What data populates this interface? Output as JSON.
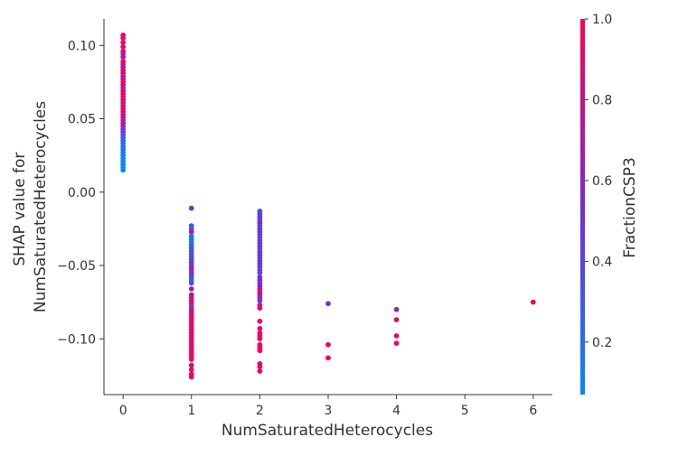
{
  "chart_data": {
    "type": "scatter",
    "title": "",
    "xlabel": "NumSaturatedHeterocycles",
    "ylabel_lines": [
      "SHAP value for",
      "NumSaturatedHeterocycles"
    ],
    "colorbar_label": "FractionCSP3",
    "xlim": [
      -0.28,
      6.28
    ],
    "ylim": [
      -0.138,
      0.118
    ],
    "x_ticks": [
      0,
      1,
      2,
      3,
      4,
      5,
      6
    ],
    "x_tick_labels": [
      "0",
      "1",
      "2",
      "3",
      "4",
      "5",
      "6"
    ],
    "y_ticks": [
      -0.1,
      -0.05,
      0.0,
      0.05,
      0.1
    ],
    "y_tick_labels": [
      "−0.10",
      "−0.05",
      "0.00",
      "0.05",
      "0.10"
    ],
    "colorbar_range": [
      0.07,
      1.0
    ],
    "colorbar_ticks": [
      0.2,
      0.4,
      0.6,
      0.8,
      1.0
    ],
    "colorbar_tick_labels": [
      "0.2",
      "0.4",
      "0.6",
      "0.8",
      "1.0"
    ],
    "colormap": [
      "#008afb",
      "#7d28d6",
      "#ff0052"
    ],
    "grid": false,
    "points": [
      {
        "x": 0,
        "y": 0.107,
        "c": 0.95
      },
      {
        "x": 0,
        "y": 0.105,
        "c": 0.92
      },
      {
        "x": 0,
        "y": 0.102,
        "c": 0.9
      },
      {
        "x": 0,
        "y": 0.099,
        "c": 0.88
      },
      {
        "x": 0,
        "y": 0.096,
        "c": 0.93
      },
      {
        "x": 0,
        "y": 0.094,
        "c": 0.7
      },
      {
        "x": 0,
        "y": 0.092,
        "c": 0.65
      },
      {
        "x": 0,
        "y": 0.089,
        "c": 0.95
      },
      {
        "x": 0,
        "y": 0.087,
        "c": 0.9
      },
      {
        "x": 0,
        "y": 0.085,
        "c": 0.6
      },
      {
        "x": 0,
        "y": 0.083,
        "c": 0.95
      },
      {
        "x": 0,
        "y": 0.081,
        "c": 0.98
      },
      {
        "x": 0,
        "y": 0.079,
        "c": 0.6
      },
      {
        "x": 0,
        "y": 0.077,
        "c": 0.85
      },
      {
        "x": 0,
        "y": 0.075,
        "c": 0.95
      },
      {
        "x": 0,
        "y": 0.073,
        "c": 0.9
      },
      {
        "x": 0,
        "y": 0.071,
        "c": 0.62
      },
      {
        "x": 0,
        "y": 0.069,
        "c": 0.9
      },
      {
        "x": 0,
        "y": 0.067,
        "c": 0.95
      },
      {
        "x": 0,
        "y": 0.065,
        "c": 0.85
      },
      {
        "x": 0,
        "y": 0.063,
        "c": 0.97
      },
      {
        "x": 0,
        "y": 0.061,
        "c": 0.9
      },
      {
        "x": 0,
        "y": 0.059,
        "c": 0.7
      },
      {
        "x": 0,
        "y": 0.057,
        "c": 0.95
      },
      {
        "x": 0,
        "y": 0.055,
        "c": 0.9
      },
      {
        "x": 0,
        "y": 0.053,
        "c": 0.75
      },
      {
        "x": 0,
        "y": 0.051,
        "c": 0.93
      },
      {
        "x": 0,
        "y": 0.049,
        "c": 0.6
      },
      {
        "x": 0,
        "y": 0.047,
        "c": 0.88
      },
      {
        "x": 0,
        "y": 0.045,
        "c": 0.55
      },
      {
        "x": 0,
        "y": 0.043,
        "c": 0.5
      },
      {
        "x": 0,
        "y": 0.041,
        "c": 0.45
      },
      {
        "x": 0,
        "y": 0.039,
        "c": 0.35
      },
      {
        "x": 0,
        "y": 0.037,
        "c": 0.3
      },
      {
        "x": 0,
        "y": 0.035,
        "c": 0.25
      },
      {
        "x": 0,
        "y": 0.033,
        "c": 0.2
      },
      {
        "x": 0,
        "y": 0.031,
        "c": 0.18
      },
      {
        "x": 0,
        "y": 0.029,
        "c": 0.15
      },
      {
        "x": 0,
        "y": 0.027,
        "c": 0.13
      },
      {
        "x": 0,
        "y": 0.025,
        "c": 0.12
      },
      {
        "x": 0,
        "y": 0.023,
        "c": 0.11
      },
      {
        "x": 0,
        "y": 0.021,
        "c": 0.1
      },
      {
        "x": 0,
        "y": 0.019,
        "c": 0.1
      },
      {
        "x": 0,
        "y": 0.017,
        "c": 0.09
      },
      {
        "x": 0,
        "y": 0.015,
        "c": 0.08
      },
      {
        "x": 1,
        "y": -0.011,
        "c": 0.5
      },
      {
        "x": 1,
        "y": -0.023,
        "c": 0.3
      },
      {
        "x": 1,
        "y": -0.025,
        "c": 0.25
      },
      {
        "x": 1,
        "y": -0.027,
        "c": 0.8
      },
      {
        "x": 1,
        "y": -0.03,
        "c": 0.2
      },
      {
        "x": 1,
        "y": -0.032,
        "c": 0.15
      },
      {
        "x": 1,
        "y": -0.034,
        "c": 0.2
      },
      {
        "x": 1,
        "y": -0.036,
        "c": 0.25
      },
      {
        "x": 1,
        "y": -0.038,
        "c": 0.3
      },
      {
        "x": 1,
        "y": -0.04,
        "c": 0.35
      },
      {
        "x": 1,
        "y": -0.042,
        "c": 0.3
      },
      {
        "x": 1,
        "y": -0.044,
        "c": 0.4
      },
      {
        "x": 1,
        "y": -0.046,
        "c": 0.35
      },
      {
        "x": 1,
        "y": -0.048,
        "c": 0.45
      },
      {
        "x": 1,
        "y": -0.05,
        "c": 0.4
      },
      {
        "x": 1,
        "y": -0.052,
        "c": 0.9
      },
      {
        "x": 1,
        "y": -0.054,
        "c": 0.45
      },
      {
        "x": 1,
        "y": -0.056,
        "c": 0.5
      },
      {
        "x": 1,
        "y": -0.058,
        "c": 0.4
      },
      {
        "x": 1,
        "y": -0.06,
        "c": 0.3
      },
      {
        "x": 1,
        "y": -0.062,
        "c": 0.35
      },
      {
        "x": 1,
        "y": -0.066,
        "c": 0.6
      },
      {
        "x": 1,
        "y": -0.07,
        "c": 0.9
      },
      {
        "x": 1,
        "y": -0.072,
        "c": 0.7
      },
      {
        "x": 1,
        "y": -0.074,
        "c": 0.95
      },
      {
        "x": 1,
        "y": -0.076,
        "c": 0.85
      },
      {
        "x": 1,
        "y": -0.078,
        "c": 0.4
      },
      {
        "x": 1,
        "y": -0.08,
        "c": 0.9
      },
      {
        "x": 1,
        "y": -0.082,
        "c": 0.8
      },
      {
        "x": 1,
        "y": -0.084,
        "c": 0.95
      },
      {
        "x": 1,
        "y": -0.086,
        "c": 0.9
      },
      {
        "x": 1,
        "y": -0.088,
        "c": 0.85
      },
      {
        "x": 1,
        "y": -0.09,
        "c": 0.95
      },
      {
        "x": 1,
        "y": -0.092,
        "c": 0.9
      },
      {
        "x": 1,
        "y": -0.094,
        "c": 0.98
      },
      {
        "x": 1,
        "y": -0.096,
        "c": 0.95
      },
      {
        "x": 1,
        "y": -0.098,
        "c": 0.9
      },
      {
        "x": 1,
        "y": -0.1,
        "c": 0.85
      },
      {
        "x": 1,
        "y": -0.102,
        "c": 0.95
      },
      {
        "x": 1,
        "y": -0.104,
        "c": 0.9
      },
      {
        "x": 1,
        "y": -0.106,
        "c": 0.98
      },
      {
        "x": 1,
        "y": -0.108,
        "c": 0.95
      },
      {
        "x": 1,
        "y": -0.11,
        "c": 0.9
      },
      {
        "x": 1,
        "y": -0.112,
        "c": 0.95
      },
      {
        "x": 1,
        "y": -0.114,
        "c": 0.98
      },
      {
        "x": 1,
        "y": -0.118,
        "c": 0.95
      },
      {
        "x": 1,
        "y": -0.121,
        "c": 0.9
      },
      {
        "x": 1,
        "y": -0.124,
        "c": 0.95
      },
      {
        "x": 1,
        "y": -0.126,
        "c": 0.98
      },
      {
        "x": 2,
        "y": -0.013,
        "c": 0.4
      },
      {
        "x": 2,
        "y": -0.015,
        "c": 0.35
      },
      {
        "x": 2,
        "y": -0.017,
        "c": 0.45
      },
      {
        "x": 2,
        "y": -0.019,
        "c": 0.4
      },
      {
        "x": 2,
        "y": -0.021,
        "c": 0.5
      },
      {
        "x": 2,
        "y": -0.023,
        "c": 0.45
      },
      {
        "x": 2,
        "y": -0.025,
        "c": 0.4
      },
      {
        "x": 2,
        "y": -0.027,
        "c": 0.5
      },
      {
        "x": 2,
        "y": -0.029,
        "c": 0.45
      },
      {
        "x": 2,
        "y": -0.031,
        "c": 0.4
      },
      {
        "x": 2,
        "y": -0.033,
        "c": 0.35
      },
      {
        "x": 2,
        "y": -0.035,
        "c": 0.45
      },
      {
        "x": 2,
        "y": -0.037,
        "c": 0.5
      },
      {
        "x": 2,
        "y": -0.039,
        "c": 0.4
      },
      {
        "x": 2,
        "y": -0.041,
        "c": 0.45
      },
      {
        "x": 2,
        "y": -0.043,
        "c": 0.5
      },
      {
        "x": 2,
        "y": -0.045,
        "c": 0.4
      },
      {
        "x": 2,
        "y": -0.047,
        "c": 0.45
      },
      {
        "x": 2,
        "y": -0.049,
        "c": 0.5
      },
      {
        "x": 2,
        "y": -0.051,
        "c": 0.4
      },
      {
        "x": 2,
        "y": -0.053,
        "c": 0.45
      },
      {
        "x": 2,
        "y": -0.055,
        "c": 0.4
      },
      {
        "x": 2,
        "y": -0.058,
        "c": 0.5
      },
      {
        "x": 2,
        "y": -0.06,
        "c": 0.55
      },
      {
        "x": 2,
        "y": -0.062,
        "c": 0.45
      },
      {
        "x": 2,
        "y": -0.064,
        "c": 0.6
      },
      {
        "x": 2,
        "y": -0.066,
        "c": 0.7
      },
      {
        "x": 2,
        "y": -0.068,
        "c": 0.9
      },
      {
        "x": 2,
        "y": -0.07,
        "c": 0.8
      },
      {
        "x": 2,
        "y": -0.072,
        "c": 0.6
      },
      {
        "x": 2,
        "y": -0.074,
        "c": 0.4
      },
      {
        "x": 2,
        "y": -0.077,
        "c": 0.85
      },
      {
        "x": 2,
        "y": -0.079,
        "c": 0.9
      },
      {
        "x": 2,
        "y": -0.088,
        "c": 0.95
      },
      {
        "x": 2,
        "y": -0.093,
        "c": 0.9
      },
      {
        "x": 2,
        "y": -0.096,
        "c": 0.95
      },
      {
        "x": 2,
        "y": -0.098,
        "c": 0.9
      },
      {
        "x": 2,
        "y": -0.1,
        "c": 0.95
      },
      {
        "x": 2,
        "y": -0.104,
        "c": 0.9
      },
      {
        "x": 2,
        "y": -0.106,
        "c": 0.95
      },
      {
        "x": 2,
        "y": -0.108,
        "c": 0.98
      },
      {
        "x": 2,
        "y": -0.117,
        "c": 0.95
      },
      {
        "x": 2,
        "y": -0.119,
        "c": 0.9
      },
      {
        "x": 2,
        "y": -0.122,
        "c": 0.95
      },
      {
        "x": 3,
        "y": -0.076,
        "c": 0.5
      },
      {
        "x": 3,
        "y": -0.104,
        "c": 0.95
      },
      {
        "x": 3,
        "y": -0.113,
        "c": 0.95
      },
      {
        "x": 4,
        "y": -0.08,
        "c": 0.55
      },
      {
        "x": 4,
        "y": -0.087,
        "c": 0.9
      },
      {
        "x": 4,
        "y": -0.098,
        "c": 0.95
      },
      {
        "x": 4,
        "y": -0.103,
        "c": 0.95
      },
      {
        "x": 6,
        "y": -0.075,
        "c": 0.95
      }
    ]
  }
}
